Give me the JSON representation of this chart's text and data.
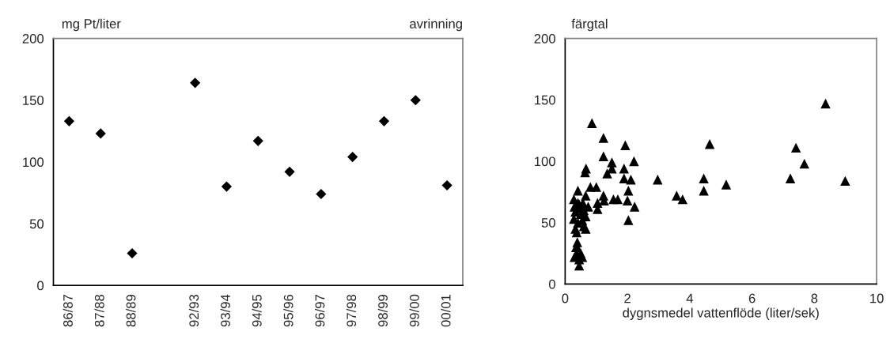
{
  "chart_data": [
    {
      "type": "scatter",
      "title": "avrinning",
      "ylabel": "mg Pt/liter",
      "categories": [
        "86/87",
        "87/88",
        "88/89",
        null,
        "92/93",
        "93/94",
        "94/95",
        "95/96",
        "96/97",
        "97/98",
        "98/99",
        "99/00",
        "00/01"
      ],
      "series": [
        {
          "color": "#000000",
          "values": [
            133,
            123,
            26,
            null,
            164,
            80,
            117,
            92,
            74,
            104,
            133,
            150,
            81
          ]
        }
      ],
      "ylim": [
        0,
        200
      ],
      "yticks": [
        0,
        50,
        100,
        150,
        200
      ],
      "marker": "diamond",
      "grid": false,
      "legend": false
    },
    {
      "type": "scatter",
      "ylabel": "färgtal",
      "xlabel": "dygnsmedel vattenflöde (liter/sek)",
      "series": [
        {
          "color": "#000000",
          "x": [
            0.86,
            1.23,
            1.93,
            4.64,
            1.23,
            1.5,
            2.21,
            0.67,
            1.5,
            1.89,
            0.64,
            1.35,
            1.89,
            2.11,
            2.97,
            4.45,
            4.45,
            2.03,
            0.41,
            0.81,
            1.0,
            1.23,
            1.55,
            1.69,
            1.25,
            2.0,
            3.58,
            3.77,
            2.23,
            1.04,
            1.04,
            2.03,
            0.28,
            0.41,
            0.66,
            0.57,
            0.74,
            0.33,
            0.5,
            0.66,
            0.28,
            0.41,
            0.66,
            0.33,
            0.37,
            0.39,
            0.39,
            0.37,
            0.3,
            0.45,
            0.5,
            0.45,
            0.55,
            0.35,
            0.5,
            0.6,
            0.55,
            0.45,
            0.6,
            0.3,
            8.36,
            7.41,
            7.68,
            7.23,
            8.99,
            5.17
          ],
          "values": [
            131,
            119,
            113,
            114,
            104,
            99,
            100,
            94,
            94,
            94,
            91,
            90,
            86,
            85,
            85,
            86,
            76,
            76,
            76,
            79,
            79,
            72,
            69,
            69,
            68,
            68,
            72,
            69,
            63,
            66,
            61,
            52,
            69,
            66,
            72,
            66,
            63,
            59,
            57,
            55,
            53,
            50,
            45,
            45,
            42,
            34,
            30,
            25,
            22,
            20,
            25,
            15,
            22,
            30,
            62,
            47,
            52,
            65,
            60,
            63,
            147,
            111,
            98,
            86,
            84,
            81
          ]
        }
      ],
      "xlim": [
        0,
        10
      ],
      "xticks": [
        0,
        2,
        4,
        6,
        8,
        10
      ],
      "ylim": [
        0,
        200
      ],
      "yticks": [
        0,
        50,
        100,
        150,
        200
      ],
      "marker": "triangle",
      "grid": false,
      "legend": false
    }
  ]
}
